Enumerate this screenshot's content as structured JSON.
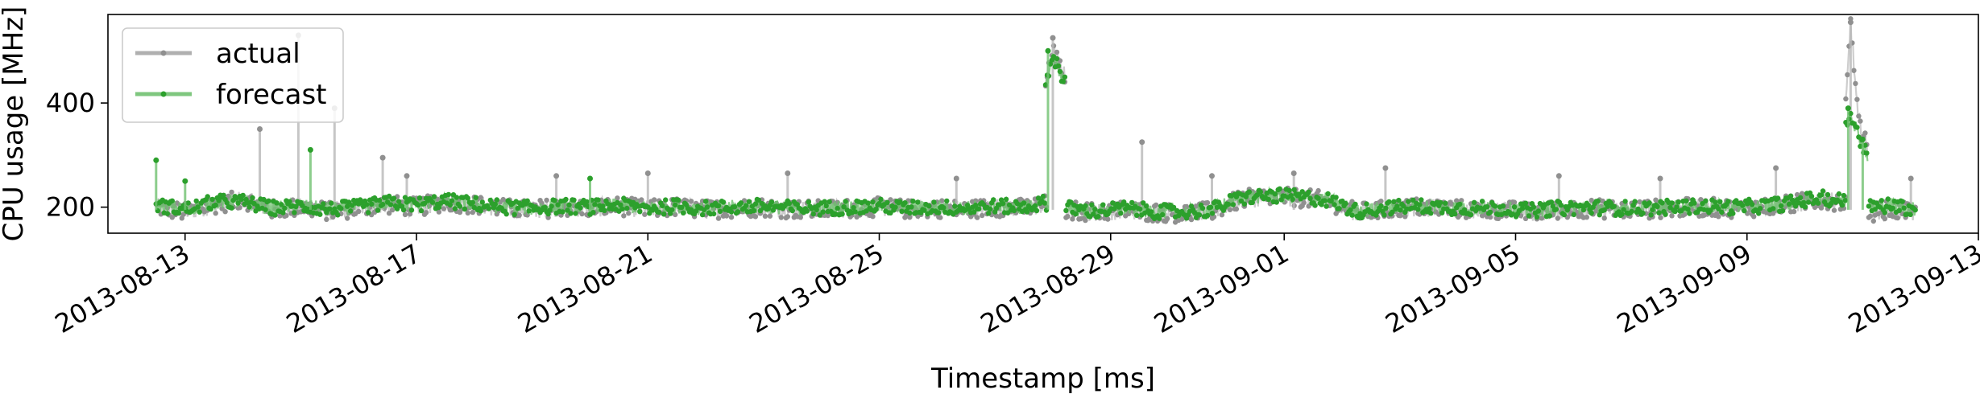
{
  "chart_data": {
    "type": "line",
    "xlabel": "Timestamp [ms]",
    "ylabel": "CPU usage [MHz]",
    "x_ticks": [
      "2013-08-13",
      "2013-08-17",
      "2013-08-21",
      "2013-08-25",
      "2013-08-29",
      "2013-09-01",
      "2013-09-05",
      "2013-09-09",
      "2013-09-13"
    ],
    "y_ticks": [
      200,
      400
    ],
    "xlim": [
      "2013-08-11T16:00",
      "2013-09-13T00:00"
    ],
    "ylim": [
      150,
      570
    ],
    "grid": false,
    "legend_position": "top-left",
    "series": [
      {
        "name": "actual",
        "color": "#a0a0a0",
        "segments": [
          {
            "start": "2013-08-12T12:00",
            "end": "2013-08-27T21:30",
            "points": [
              [
                "2013-08-12T12:00",
                200
              ],
              [
                "2013-08-13T00:00",
                190
              ],
              [
                "2013-08-13T12:00",
                205
              ],
              [
                "2013-08-14T00:00",
                215
              ],
              [
                "2013-08-14T12:00",
                195
              ],
              [
                "2013-08-15T00:00",
                200
              ],
              [
                "2013-08-15T12:00",
                192
              ],
              [
                "2013-08-16T00:00",
                198
              ],
              [
                "2013-08-16T12:00",
                205
              ],
              [
                "2013-08-17T00:00",
                200
              ],
              [
                "2013-08-17T12:00",
                210
              ],
              [
                "2013-08-18T00:00",
                205
              ],
              [
                "2013-08-18T12:00",
                198
              ],
              [
                "2013-08-19T00:00",
                195
              ],
              [
                "2013-08-19T12:00",
                200
              ],
              [
                "2013-08-20T00:00",
                198
              ],
              [
                "2013-08-20T12:00",
                202
              ],
              [
                "2013-08-21T00:00",
                196
              ],
              [
                "2013-08-21T12:00",
                200
              ],
              [
                "2013-08-22T00:00",
                195
              ],
              [
                "2013-08-22T12:00",
                198
              ],
              [
                "2013-08-23T00:00",
                200
              ],
              [
                "2013-08-23T12:00",
                196
              ],
              [
                "2013-08-24T00:00",
                195
              ],
              [
                "2013-08-24T12:00",
                198
              ],
              [
                "2013-08-25T00:00",
                200
              ],
              [
                "2013-08-25T12:00",
                196
              ],
              [
                "2013-08-26T00:00",
                198
              ],
              [
                "2013-08-26T12:00",
                195
              ],
              [
                "2013-08-27T00:00",
                200
              ],
              [
                "2013-08-27T12:00",
                198
              ],
              [
                "2013-08-27T20:00",
                205
              ]
            ]
          },
          {
            "start": "2013-08-27T21:00",
            "end": "2013-08-28T05:00",
            "points": [
              [
                "2013-08-27T21:00",
                440
              ],
              [
                "2013-08-28T00:00",
                500
              ],
              [
                "2013-08-28T03:00",
                470
              ],
              [
                "2013-08-28T05:00",
                450
              ]
            ]
          },
          {
            "start": "2013-08-28T05:30",
            "end": "2013-09-10T17:00",
            "points": [
              [
                "2013-08-28T06:00",
                195
              ],
              [
                "2013-08-28T18:00",
                190
              ],
              [
                "2013-08-29T06:00",
                195
              ],
              [
                "2013-08-29T18:00",
                190
              ],
              [
                "2013-08-30T06:00",
                188
              ],
              [
                "2013-08-30T18:00",
                192
              ],
              [
                "2013-08-31T06:00",
                215
              ],
              [
                "2013-08-31T18:00",
                220
              ],
              [
                "2013-09-01T06:00",
                218
              ],
              [
                "2013-09-01T18:00",
                212
              ],
              [
                "2013-09-02T06:00",
                190
              ],
              [
                "2013-09-02T18:00",
                195
              ],
              [
                "2013-09-03T06:00",
                200
              ],
              [
                "2013-09-03T18:00",
                198
              ],
              [
                "2013-09-04T06:00",
                195
              ],
              [
                "2013-09-04T18:00",
                195
              ],
              [
                "2013-09-05T06:00",
                190
              ],
              [
                "2013-09-05T18:00",
                195
              ],
              [
                "2013-09-06T06:00",
                198
              ],
              [
                "2013-09-06T18:00",
                195
              ],
              [
                "2013-09-07T06:00",
                196
              ],
              [
                "2013-09-07T18:00",
                198
              ],
              [
                "2013-09-08T06:00",
                200
              ],
              [
                "2013-09-08T18:00",
                198
              ],
              [
                "2013-09-09T06:00",
                200
              ],
              [
                "2013-09-09T18:00",
                205
              ],
              [
                "2013-09-10T06:00",
                215
              ],
              [
                "2013-09-10T16:00",
                210
              ]
            ]
          },
          {
            "start": "2013-09-10T17:00",
            "end": "2013-09-11T02:00",
            "points": [
              [
                "2013-09-10T17:00",
                390
              ],
              [
                "2013-09-10T19:00",
                555
              ],
              [
                "2013-09-10T22:00",
                370
              ],
              [
                "2013-09-11T02:00",
                310
              ]
            ]
          },
          {
            "start": "2013-09-11T02:30",
            "end": "2013-09-11T22:00",
            "points": [
              [
                "2013-09-11T03:00",
                190
              ],
              [
                "2013-09-11T12:00",
                195
              ],
              [
                "2013-09-11T22:00",
                188
              ]
            ]
          }
        ],
        "spikes": [
          [
            "2013-08-14T07:00",
            350
          ],
          [
            "2013-08-14T23:00",
            530
          ],
          [
            "2013-08-15T14:00",
            390
          ],
          [
            "2013-08-16T10:00",
            295
          ],
          [
            "2013-08-16T20:00",
            260
          ],
          [
            "2013-08-19T10:00",
            260
          ],
          [
            "2013-08-21T00:00",
            265
          ],
          [
            "2013-08-23T10:00",
            265
          ],
          [
            "2013-08-26T08:00",
            255
          ],
          [
            "2013-08-28T00:00",
            525
          ],
          [
            "2013-08-29T13:00",
            325
          ],
          [
            "2013-08-30T18:00",
            260
          ],
          [
            "2013-09-01T04:00",
            265
          ],
          [
            "2013-09-02T18:00",
            275
          ],
          [
            "2013-09-05T18:00",
            260
          ],
          [
            "2013-09-07T12:00",
            255
          ],
          [
            "2013-09-09T12:00",
            275
          ],
          [
            "2013-09-10T19:00",
            555
          ],
          [
            "2013-09-11T20:00",
            255
          ]
        ]
      },
      {
        "name": "forecast",
        "color": "#2ca02c",
        "segments": [
          {
            "start": "2013-08-12T12:00",
            "end": "2013-08-27T21:30",
            "points": [
              [
                "2013-08-12T12:00",
                205
              ],
              [
                "2013-08-13T00:00",
                195
              ],
              [
                "2013-08-13T12:00",
                210
              ],
              [
                "2013-08-14T00:00",
                210
              ],
              [
                "2013-08-14T12:00",
                198
              ],
              [
                "2013-08-15T00:00",
                202
              ],
              [
                "2013-08-15T12:00",
                196
              ],
              [
                "2013-08-16T00:00",
                200
              ],
              [
                "2013-08-16T12:00",
                208
              ],
              [
                "2013-08-17T00:00",
                205
              ],
              [
                "2013-08-17T12:00",
                212
              ],
              [
                "2013-08-18T00:00",
                206
              ],
              [
                "2013-08-18T12:00",
                200
              ],
              [
                "2013-08-19T00:00",
                198
              ],
              [
                "2013-08-19T12:00",
                202
              ],
              [
                "2013-08-20T00:00",
                200
              ],
              [
                "2013-08-20T12:00",
                204
              ],
              [
                "2013-08-21T00:00",
                198
              ],
              [
                "2013-08-21T12:00",
                202
              ],
              [
                "2013-08-22T00:00",
                198
              ],
              [
                "2013-08-22T12:00",
                200
              ],
              [
                "2013-08-23T00:00",
                202
              ],
              [
                "2013-08-23T12:00",
                198
              ],
              [
                "2013-08-24T00:00",
                198
              ],
              [
                "2013-08-24T12:00",
                200
              ],
              [
                "2013-08-25T00:00",
                202
              ],
              [
                "2013-08-25T12:00",
                198
              ],
              [
                "2013-08-26T00:00",
                200
              ],
              [
                "2013-08-26T12:00",
                198
              ],
              [
                "2013-08-27T00:00",
                202
              ],
              [
                "2013-08-27T12:00",
                200
              ],
              [
                "2013-08-27T20:00",
                208
              ]
            ]
          },
          {
            "start": "2013-08-27T21:00",
            "end": "2013-08-28T05:00",
            "points": [
              [
                "2013-08-27T21:00",
                430
              ],
              [
                "2013-08-28T00:00",
                490
              ],
              [
                "2013-08-28T03:00",
                460
              ],
              [
                "2013-08-28T05:00",
                440
              ]
            ]
          },
          {
            "start": "2013-08-28T05:30",
            "end": "2013-09-10T17:00",
            "points": [
              [
                "2013-08-28T06:00",
                198
              ],
              [
                "2013-08-28T18:00",
                192
              ],
              [
                "2013-08-29T06:00",
                198
              ],
              [
                "2013-08-29T18:00",
                192
              ],
              [
                "2013-08-30T06:00",
                190
              ],
              [
                "2013-08-30T18:00",
                195
              ],
              [
                "2013-08-31T06:00",
                218
              ],
              [
                "2013-08-31T18:00",
                222
              ],
              [
                "2013-09-01T06:00",
                220
              ],
              [
                "2013-09-01T18:00",
                214
              ],
              [
                "2013-09-02T06:00",
                192
              ],
              [
                "2013-09-02T18:00",
                198
              ],
              [
                "2013-09-03T06:00",
                202
              ],
              [
                "2013-09-03T18:00",
                200
              ],
              [
                "2013-09-04T06:00",
                198
              ],
              [
                "2013-09-04T18:00",
                198
              ],
              [
                "2013-09-05T06:00",
                193
              ],
              [
                "2013-09-05T18:00",
                198
              ],
              [
                "2013-09-06T06:00",
                200
              ],
              [
                "2013-09-06T18:00",
                198
              ],
              [
                "2013-09-07T06:00",
                198
              ],
              [
                "2013-09-07T18:00",
                200
              ],
              [
                "2013-09-08T06:00",
                202
              ],
              [
                "2013-09-08T18:00",
                200
              ],
              [
                "2013-09-09T06:00",
                202
              ],
              [
                "2013-09-09T18:00",
                208
              ],
              [
                "2013-09-10T06:00",
                218
              ],
              [
                "2013-09-10T16:00",
                212
              ]
            ]
          },
          {
            "start": "2013-09-10T17:00",
            "end": "2013-09-11T02:00",
            "points": [
              [
                "2013-09-10T17:00",
                360
              ],
              [
                "2013-09-10T19:00",
                385
              ],
              [
                "2013-09-10T22:00",
                340
              ],
              [
                "2013-09-11T02:00",
                300
              ]
            ]
          },
          {
            "start": "2013-09-11T02:30",
            "end": "2013-09-11T22:00",
            "points": [
              [
                "2013-09-11T03:00",
                200
              ],
              [
                "2013-09-11T12:00",
                205
              ],
              [
                "2013-09-11T22:00",
                195
              ]
            ]
          }
        ],
        "spikes": [
          [
            "2013-08-12T12:00",
            290
          ],
          [
            "2013-08-13T00:00",
            250
          ],
          [
            "2013-08-15T04:00",
            310
          ],
          [
            "2013-08-20T00:00",
            255
          ],
          [
            "2013-08-27T22:00",
            500
          ],
          [
            "2013-09-10T18:00",
            390
          ],
          [
            "2013-09-11T00:00",
            330
          ]
        ]
      }
    ]
  }
}
